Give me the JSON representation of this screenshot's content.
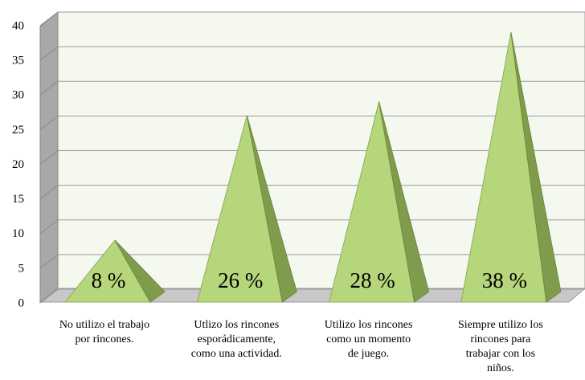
{
  "chart_data": {
    "type": "pyramid",
    "categories": [
      "No utilizo el trabajo\npor rincones.",
      "Utlizo los rincones\nesporádicamente,\ncomo una actividad.",
      "Utilizo los rincones\ncomo un momento\nde juego.",
      "Siempre utilizo los\nrincones para\ntrabajar con los\nniños."
    ],
    "values": [
      8,
      26,
      28,
      38
    ],
    "value_labels": [
      "8  %",
      "26 %",
      "28 %",
      "38 %"
    ],
    "color": "#b6d67c",
    "ylim": [
      0,
      40
    ],
    "yticks": [
      0,
      5,
      10,
      15,
      20,
      25,
      30,
      35,
      40
    ],
    "grid": true
  }
}
